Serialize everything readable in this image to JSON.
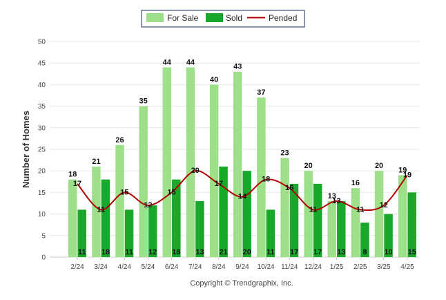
{
  "chart_data": {
    "type": "bar",
    "categories": [
      "2/24",
      "3/24",
      "4/24",
      "5/24",
      "6/24",
      "7/24",
      "8/24",
      "9/24",
      "10/24",
      "11/24",
      "12/24",
      "1/25",
      "2/25",
      "3/25",
      "4/25"
    ],
    "series": [
      {
        "name": "For Sale",
        "type": "bar",
        "color": "#9ee08a",
        "values": [
          18,
          21,
          26,
          35,
          44,
          44,
          40,
          43,
          37,
          23,
          20,
          13,
          16,
          20,
          19
        ]
      },
      {
        "name": "Sold",
        "type": "bar",
        "color": "#1aa82a",
        "values": [
          11,
          18,
          11,
          12,
          18,
          13,
          21,
          20,
          11,
          17,
          17,
          13,
          8,
          10,
          15
        ]
      },
      {
        "name": "Pended",
        "type": "line",
        "color": "#b30000",
        "values": [
          17,
          11,
          15,
          12,
          15,
          20,
          17,
          14,
          18,
          16,
          11,
          13,
          11,
          12,
          19
        ]
      }
    ],
    "ylabel": "Number of Homes",
    "ylim": [
      0,
      50
    ],
    "yticks": [
      0,
      5,
      10,
      15,
      20,
      25,
      30,
      35,
      40,
      45,
      50
    ],
    "grid": true,
    "legend_position": "top-center"
  },
  "footer": {
    "copyright": "Copyright © Trendgraphix, Inc."
  }
}
